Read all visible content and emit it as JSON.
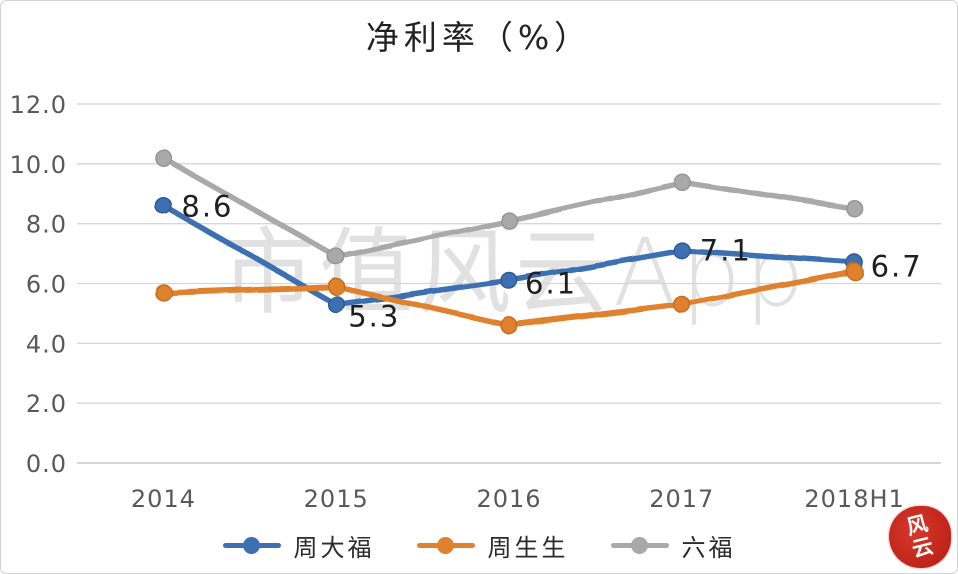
{
  "page": {
    "watermark": "市值风云App",
    "seal": "风云"
  },
  "chart_data": {
    "type": "line",
    "title": "净利率（%）",
    "categories": [
      "2014",
      "2015",
      "2016",
      "2017",
      "2018H1"
    ],
    "series": [
      {
        "name": "周大福",
        "color": "#3e6fb3",
        "marker_edge": "#2f5a96",
        "values": [
          8.6,
          5.3,
          6.1,
          7.1,
          6.7
        ],
        "data_labels": [
          "8.6",
          "5.3",
          "6.1",
          "7.1",
          "6.7"
        ]
      },
      {
        "name": "周生生",
        "color": "#e0812f",
        "marker_edge": "#c96c1d",
        "values": [
          5.7,
          5.9,
          4.6,
          5.3,
          6.4
        ],
        "data_labels": []
      },
      {
        "name": "六福",
        "color": "#a9a9a9",
        "marker_edge": "#969696",
        "values": [
          10.2,
          6.9,
          8.1,
          9.4,
          8.5
        ],
        "data_labels": []
      }
    ],
    "y_axis": {
      "min": 0,
      "max": 12,
      "step": 2,
      "tick_labels": [
        "0.0",
        "2.0",
        "4.0",
        "6.0",
        "8.0",
        "10.0",
        "12.0"
      ]
    },
    "grid": true,
    "legend_position": "bottom",
    "colors": {
      "grid": "#d6d6d6",
      "baseline": "#bdbdbd",
      "axis_text": "#595959",
      "data_label_text": "#1f1f1f"
    }
  }
}
